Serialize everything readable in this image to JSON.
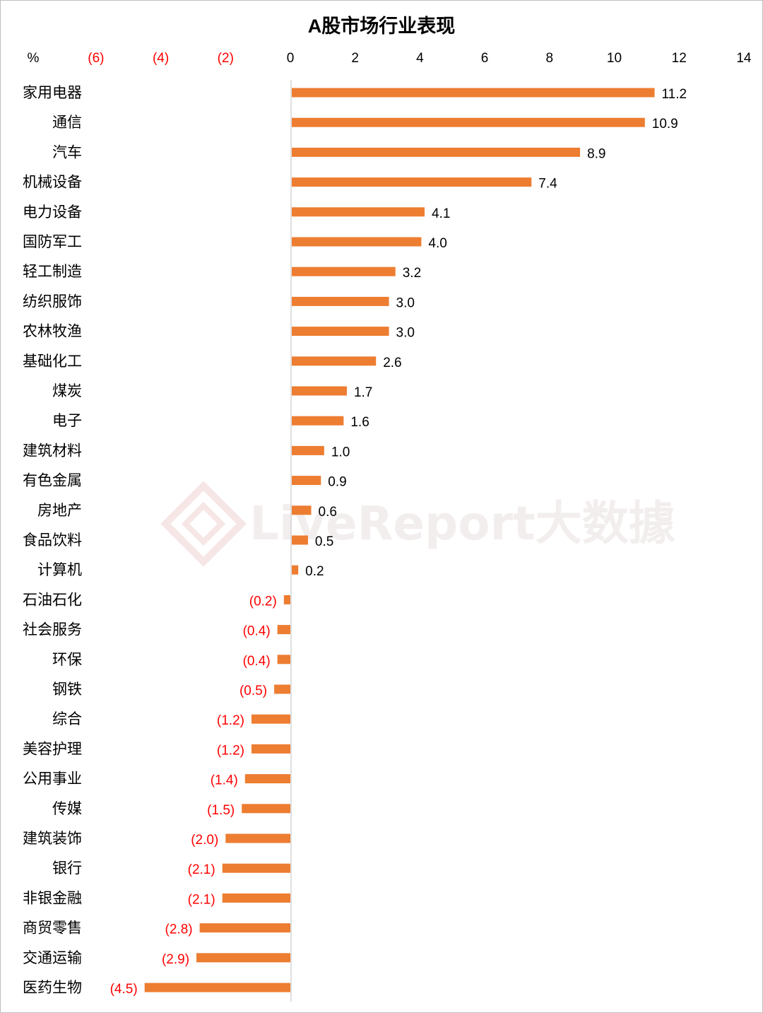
{
  "chart_data": {
    "type": "bar",
    "orientation": "horizontal",
    "title": "A股市场行业表现",
    "unit_label": "%",
    "xlim": [
      -8,
      14
    ],
    "x_ticks": [
      {
        "value": -6,
        "label": "(6)"
      },
      {
        "value": -4,
        "label": "(4)"
      },
      {
        "value": -2,
        "label": "(2)"
      },
      {
        "value": 0,
        "label": "0"
      },
      {
        "value": 2,
        "label": "2"
      },
      {
        "value": 4,
        "label": "4"
      },
      {
        "value": 6,
        "label": "6"
      },
      {
        "value": 8,
        "label": "8"
      },
      {
        "value": 10,
        "label": "10"
      },
      {
        "value": 12,
        "label": "12"
      },
      {
        "value": 14,
        "label": "14"
      }
    ],
    "categories": [
      "家用电器",
      "通信",
      "汽车",
      "机械设备",
      "电力设备",
      "国防军工",
      "轻工制造",
      "纺织服饰",
      "农林牧渔",
      "基础化工",
      "煤炭",
      "电子",
      "建筑材料",
      "有色金属",
      "房地产",
      "食品饮料",
      "计算机",
      "石油石化",
      "社会服务",
      "环保",
      "钢铁",
      "综合",
      "美容护理",
      "公用事业",
      "传媒",
      "建筑装饰",
      "银行",
      "非银金融",
      "商贸零售",
      "交通运输",
      "医药生物"
    ],
    "values": [
      11.2,
      10.9,
      8.9,
      7.4,
      4.1,
      4.0,
      3.2,
      3.0,
      3.0,
      2.6,
      1.7,
      1.6,
      1.0,
      0.9,
      0.6,
      0.5,
      0.2,
      -0.2,
      -0.4,
      -0.4,
      -0.5,
      -1.2,
      -1.2,
      -1.4,
      -1.5,
      -2.0,
      -2.1,
      -2.1,
      -2.8,
      -2.9,
      -4.5
    ],
    "value_labels": [
      "11.2",
      "10.9",
      "8.9",
      "7.4",
      "4.1",
      "4.0",
      "3.2",
      "3.0",
      "3.0",
      "2.6",
      "1.7",
      "1.6",
      "1.0",
      "0.9",
      "0.6",
      "0.5",
      "0.2",
      "(0.2)",
      "(0.4)",
      "(0.4)",
      "(0.5)",
      "(1.2)",
      "(1.2)",
      "(1.4)",
      "(1.5)",
      "(2.0)",
      "(2.1)",
      "(2.1)",
      "(2.8)",
      "(2.9)",
      "(4.5)"
    ],
    "grid": false,
    "legend": "none"
  },
  "colors": {
    "bar": "#ed7d31",
    "negative_text": "#ff0000",
    "positive_text": "#000000",
    "axis": "#bfbfbf",
    "watermark_icon": "#f6e8e8"
  },
  "watermark": {
    "text": "LiveReport大数據"
  }
}
